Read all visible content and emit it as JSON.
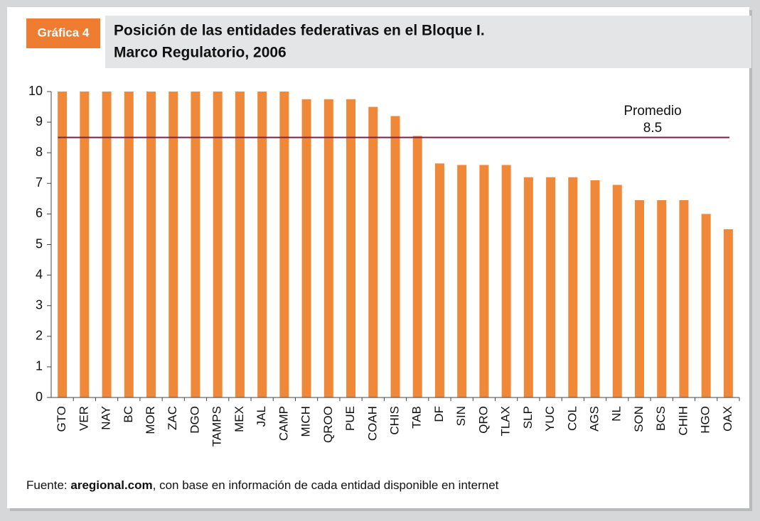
{
  "chart_data": {
    "type": "bar",
    "badge": "Gráfica 4",
    "title_lines": [
      "Posición de las entidades federativas en el Bloque I.",
      "Marco Regulatorio, 2006"
    ],
    "categories": [
      "GTO",
      "VER",
      "NAY",
      "BC",
      "MOR",
      "ZAC",
      "DGO",
      "TAMPS",
      "MEX",
      "JAL",
      "CAMP",
      "MICH",
      "QROO",
      "PUE",
      "COAH",
      "CHIS",
      "TAB",
      "DF",
      "SIN",
      "QRO",
      "TLAX",
      "SLP",
      "YUC",
      "COL",
      "AGS",
      "NL",
      "SON",
      "BCS",
      "CHIH",
      "HGO",
      "OAX"
    ],
    "values": [
      10,
      10,
      10,
      10,
      10,
      10,
      10,
      10,
      10,
      10,
      10,
      9.75,
      9.75,
      9.75,
      9.5,
      9.2,
      8.55,
      7.65,
      7.6,
      7.6,
      7.6,
      7.2,
      7.2,
      7.2,
      7.1,
      6.95,
      6.45,
      6.45,
      6.45,
      6.0,
      5.5
    ],
    "color": "#f0883a",
    "ylim": [
      0,
      10
    ],
    "yticks": [
      0,
      1,
      2,
      3,
      4,
      5,
      6,
      7,
      8,
      9,
      10
    ],
    "average": {
      "label": "Promedio",
      "value": 8.5,
      "color": "#7b2346"
    },
    "source": [
      "Fuente: ",
      "aregional.com",
      ", con base en información de cada entidad disponible en internet"
    ]
  }
}
